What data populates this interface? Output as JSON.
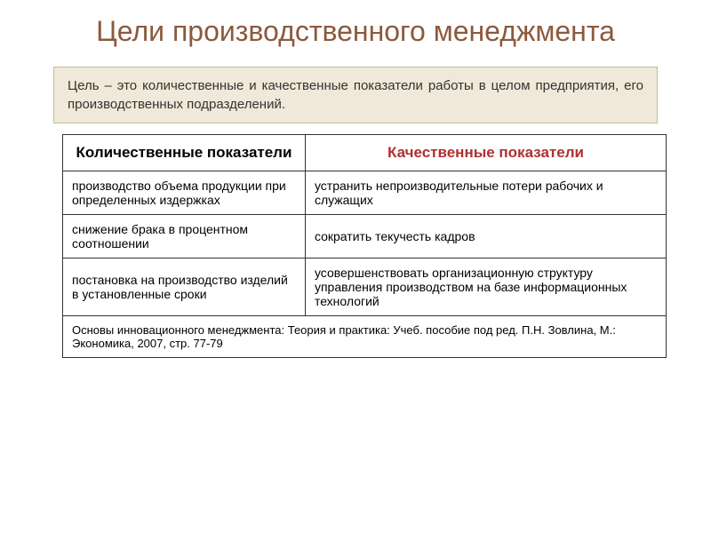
{
  "title": "Цели производственного менеджмента",
  "definition": "Цель – это количественные и качественные показатели работы в целом предприятия, его производственных подразделений.",
  "table": {
    "headers": {
      "quantitative": "Количественные показатели",
      "qualitative": "Качественные показатели"
    },
    "rows": [
      {
        "quant": "производство объема продукции при определенных издержках",
        "qual": "устранить непроизводительные потери рабочих и служащих"
      },
      {
        "quant": "снижение брака в процентном соотношении",
        "qual": "сократить текучесть кадров"
      },
      {
        "quant": "постановка на производство изделий в установленные сроки",
        "qual": "усовершенствовать организационную структуру управления производством на базе информационных технологий"
      }
    ],
    "footer": "Основы инновационного менеджмента: Теория и практика: Учеб. пособие под ред. П.Н. Зовлина, М.: Экономика, 2007, стр. 77-79"
  },
  "colors": {
    "title_color": "#8b5a3c",
    "definition_bg": "#f0e8d8",
    "definition_border": "#c5b8a0",
    "qual_header_color": "#b03030",
    "border_color": "#333333",
    "background": "#ffffff"
  },
  "typography": {
    "title_fontsize": 32,
    "body_fontsize": 15,
    "table_fontsize": 14,
    "header_fontsize": 17
  }
}
